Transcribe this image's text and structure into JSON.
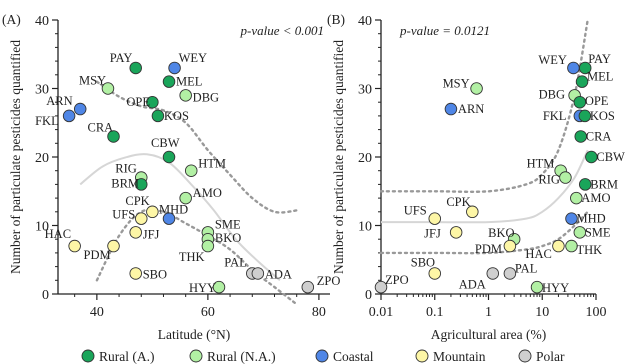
{
  "colors": {
    "Rural (A.)": "#1aa55a",
    "Rural (N.A.)": "#b2f0a4",
    "Coastal": "#4f86e6",
    "Mountain": "#fdf6a6",
    "Polar": "#cfcfcf"
  },
  "legend": [
    {
      "label": "Rural (A.)",
      "color": "#1aa55a"
    },
    {
      "label": "Rural (N.A.)",
      "color": "#b2f0a4"
    },
    {
      "label": "Coastal",
      "color": "#4f86e6"
    },
    {
      "label": "Mountain",
      "color": "#fdf6a6"
    },
    {
      "label": "Polar",
      "color": "#cfcfcf"
    }
  ],
  "chart_data": [
    {
      "type": "scatter",
      "panel_label": "(A)",
      "annotation": "p-value < 0.001",
      "xlabel": "Latitude (°N)",
      "ylabel": "Number of particulate pesticides quantified",
      "xlim": [
        33,
        82
      ],
      "ylim": [
        0,
        40
      ],
      "xticks": [
        40,
        60,
        80
      ],
      "yticks": [
        0,
        10,
        20,
        30,
        40
      ],
      "fit": {
        "kind": "smooth",
        "x": [
          37,
          41,
          45,
          49,
          53,
          57,
          61,
          65,
          69,
          73
        ],
        "y": [
          16,
          18.6,
          19.9,
          20.4,
          19.2,
          16,
          12.3,
          8,
          4.8,
          2
        ]
      },
      "band_upper": {
        "x": [
          40,
          44,
          48,
          52,
          56,
          60,
          64,
          68,
          72,
          76
        ],
        "y": [
          31,
          28.8,
          27.4,
          26.8,
          25,
          21,
          17.4,
          14,
          12,
          12.2
        ]
      },
      "band_lower": {
        "x": [
          40,
          44,
          48,
          52,
          56,
          60,
          64,
          68,
          72,
          76
        ],
        "y": [
          2,
          8.5,
          12,
          12,
          10.3,
          8.5,
          6.5,
          3.5,
          1,
          -1.5
        ]
      },
      "points": [
        {
          "label": "PAY",
          "x": 47,
          "y": 33,
          "group": "Rural (A.)"
        },
        {
          "label": "WEY",
          "x": 54,
          "y": 33,
          "group": "Coastal"
        },
        {
          "label": "MSY",
          "x": 42,
          "y": 30,
          "group": "Rural (N.A.)"
        },
        {
          "label": "MEL",
          "x": 53,
          "y": 31,
          "group": "Rural (A.)"
        },
        {
          "label": "DBG",
          "x": 56,
          "y": 29,
          "group": "Rural (N.A.)"
        },
        {
          "label": "ARN",
          "x": 37,
          "y": 27,
          "group": "Coastal"
        },
        {
          "label": "FKL",
          "x": 35,
          "y": 26,
          "group": "Coastal"
        },
        {
          "label": "OPE",
          "x": 50,
          "y": 28,
          "group": "Rural (A.)"
        },
        {
          "label": "KOS",
          "x": 51,
          "y": 26,
          "group": "Rural (A.)"
        },
        {
          "label": "CRA",
          "x": 43,
          "y": 23,
          "group": "Rural (A.)"
        },
        {
          "label": "CBW",
          "x": 53,
          "y": 20,
          "group": "Rural (A.)"
        },
        {
          "label": "HTM",
          "x": 57,
          "y": 18,
          "group": "Rural (N.A.)"
        },
        {
          "label": "RIG",
          "x": 48,
          "y": 17,
          "group": "Rural (N.A.)"
        },
        {
          "label": "BRM",
          "x": 48,
          "y": 16,
          "group": "Rural (A.)"
        },
        {
          "label": "AMO",
          "x": 56,
          "y": 14,
          "group": "Rural (N.A.)"
        },
        {
          "label": "CPK",
          "x": 50,
          "y": 12,
          "group": "Mountain"
        },
        {
          "label": "MHD",
          "x": 53,
          "y": 11,
          "group": "Coastal"
        },
        {
          "label": "UFS",
          "x": 48,
          "y": 11,
          "group": "Mountain"
        },
        {
          "label": "SME",
          "x": 60,
          "y": 9,
          "group": "Rural (N.A.)"
        },
        {
          "label": "HAC",
          "x": 36,
          "y": 7,
          "group": "Mountain"
        },
        {
          "label": "JFJ",
          "x": 47,
          "y": 9,
          "group": "Mountain"
        },
        {
          "label": "BKO",
          "x": 60,
          "y": 8,
          "group": "Rural (N.A.)"
        },
        {
          "label": "PDM",
          "x": 43,
          "y": 7,
          "group": "Mountain"
        },
        {
          "label": "THK",
          "x": 60,
          "y": 7,
          "group": "Rural (N.A.)"
        },
        {
          "label": "PAL",
          "x": 68,
          "y": 3,
          "group": "Polar"
        },
        {
          "label": "ADA",
          "x": 69,
          "y": 3,
          "group": "Polar"
        },
        {
          "label": "SBO",
          "x": 47,
          "y": 3,
          "group": "Mountain"
        },
        {
          "label": "HYY",
          "x": 62,
          "y": 1,
          "group": "Rural (N.A.)"
        },
        {
          "label": "ZPO",
          "x": 78,
          "y": 1,
          "group": "Polar"
        }
      ]
    },
    {
      "type": "scatter",
      "panel_label": "(B)",
      "annotation": "p-value = 0.0121",
      "xlabel": "Agricultural area (%)",
      "ylabel": "Number of particulate pesticides quantified",
      "xscale": "log",
      "xlim": [
        0.01,
        100
      ],
      "ylim": [
        0,
        40
      ],
      "xticks": [
        0.01,
        0.1,
        1,
        10,
        100
      ],
      "xticklabels": [
        "0.01",
        "0.1",
        "1",
        "10",
        "100"
      ],
      "yticks": [
        0,
        10,
        20,
        30,
        40
      ],
      "fit": {
        "kind": "smooth",
        "x": [
          0.01,
          0.1,
          1,
          5,
          10,
          20,
          40,
          70
        ],
        "y": [
          10.5,
          10.5,
          10.5,
          11,
          12,
          14,
          17,
          21
        ]
      },
      "band_upper": {
        "x": [
          0.01,
          0.1,
          1,
          5,
          10,
          20,
          40,
          70
        ],
        "y": [
          15,
          15,
          15,
          16,
          17.5,
          21,
          29,
          40
        ]
      },
      "band_lower": {
        "x": [
          0.01,
          0.1,
          1,
          5,
          10,
          20,
          40,
          70
        ],
        "y": [
          6,
          6,
          6,
          6.5,
          7,
          8,
          10,
          12
        ]
      },
      "points": [
        {
          "label": "WEY",
          "x": 38,
          "y": 33,
          "group": "Coastal"
        },
        {
          "label": "PAY",
          "x": 63,
          "y": 33,
          "group": "Rural (A.)"
        },
        {
          "label": "MSY",
          "x": 0.6,
          "y": 30,
          "group": "Rural (N.A.)"
        },
        {
          "label": "MEL",
          "x": 55,
          "y": 31,
          "group": "Rural (A.)"
        },
        {
          "label": "DBG",
          "x": 40,
          "y": 29,
          "group": "Rural (N.A.)"
        },
        {
          "label": "OPE",
          "x": 50,
          "y": 28,
          "group": "Rural (A.)"
        },
        {
          "label": "ARN",
          "x": 0.2,
          "y": 27,
          "group": "Coastal"
        },
        {
          "label": "FKL",
          "x": 50,
          "y": 26,
          "group": "Coastal"
        },
        {
          "label": "KOS",
          "x": 62,
          "y": 26,
          "group": "Rural (A.)"
        },
        {
          "label": "CRA",
          "x": 52,
          "y": 23,
          "group": "Rural (A.)"
        },
        {
          "label": "CBW",
          "x": 82,
          "y": 20,
          "group": "Rural (A.)"
        },
        {
          "label": "HTM",
          "x": 22,
          "y": 18,
          "group": "Rural (N.A.)"
        },
        {
          "label": "RIG",
          "x": 27,
          "y": 17,
          "group": "Rural (N.A.)"
        },
        {
          "label": "BRM",
          "x": 63,
          "y": 16,
          "group": "Rural (A.)"
        },
        {
          "label": "AMO",
          "x": 43,
          "y": 14,
          "group": "Rural (N.A.)"
        },
        {
          "label": "CPK",
          "x": 0.5,
          "y": 12,
          "group": "Mountain"
        },
        {
          "label": "UFS",
          "x": 0.1,
          "y": 11,
          "group": "Mountain"
        },
        {
          "label": "MHD",
          "x": 35,
          "y": 11,
          "group": "Coastal"
        },
        {
          "label": "SME",
          "x": 50,
          "y": 9,
          "group": "Rural (N.A.)"
        },
        {
          "label": "JFJ",
          "x": 0.25,
          "y": 9,
          "group": "Mountain"
        },
        {
          "label": "BKO",
          "x": 3,
          "y": 8,
          "group": "Rural (N.A.)"
        },
        {
          "label": "PDM",
          "x": 2.5,
          "y": 7,
          "group": "Mountain"
        },
        {
          "label": "HAC",
          "x": 20,
          "y": 7,
          "group": "Mountain"
        },
        {
          "label": "THK",
          "x": 35,
          "y": 7,
          "group": "Rural (N.A.)"
        },
        {
          "label": "SBO",
          "x": 0.1,
          "y": 3,
          "group": "Mountain"
        },
        {
          "label": "PAL",
          "x": 2.5,
          "y": 3,
          "group": "Polar"
        },
        {
          "label": "ADA",
          "x": 1.2,
          "y": 3,
          "group": "Polar"
        },
        {
          "label": "HYY",
          "x": 8,
          "y": 1,
          "group": "Rural (N.A.)"
        },
        {
          "label": "ZPO",
          "x": 0.01,
          "y": 1,
          "group": "Polar"
        }
      ]
    }
  ]
}
